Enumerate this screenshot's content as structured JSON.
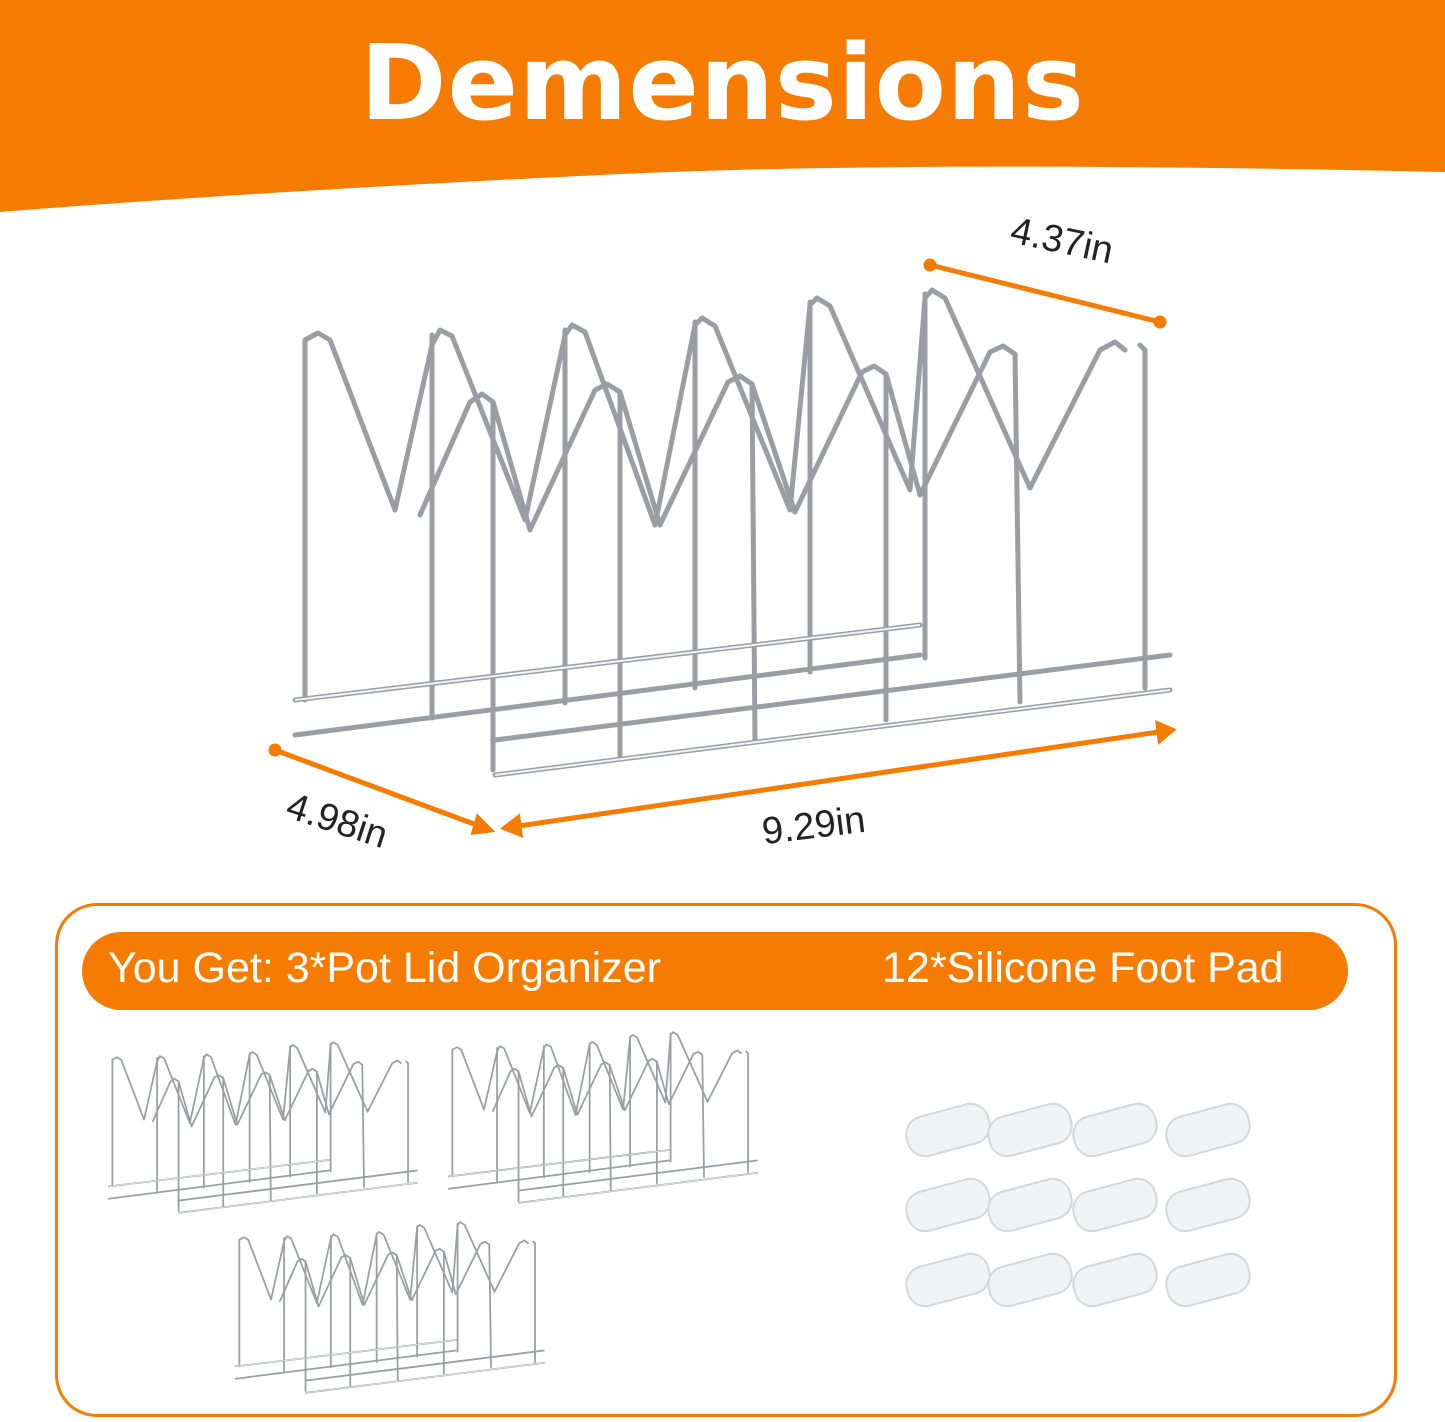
{
  "header": {
    "title": "Demensions",
    "color": "#f57c00"
  },
  "dimensions": {
    "depth_back": "4.37in",
    "depth_front": "4.98in",
    "length": "9.29in"
  },
  "package": {
    "you_get_label": "You Get:  3*Pot Lid Organizer",
    "foot_pad_label": "12*Silicone Foot Pad",
    "organizer_count": 3,
    "foot_pad_count": 12
  }
}
